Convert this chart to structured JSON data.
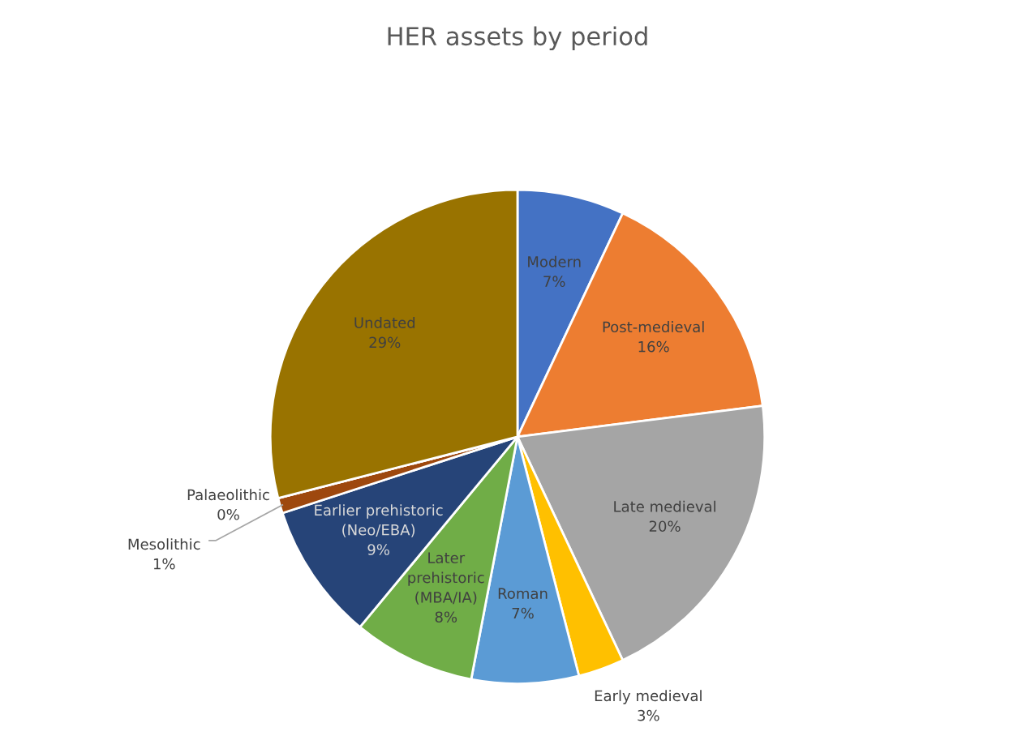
{
  "chart_data": {
    "type": "pie",
    "title": "HER assets by period",
    "categories": [
      "Modern",
      "Post-medieval",
      "Late medieval",
      "Early medieval",
      "Roman",
      "Later\nprehistoric\n(MBA/IA)",
      "Earlier prehistoric\n(Neo/EBA)",
      "Mesolithic",
      "Palaeolithic",
      "Undated"
    ],
    "values": [
      7,
      16,
      20,
      3,
      7,
      8,
      9,
      1,
      0,
      29
    ],
    "value_labels": [
      "7%",
      "16%",
      "20%",
      "3%",
      "7%",
      "8%",
      "9%",
      "1%",
      "0%",
      "29%"
    ],
    "colors": [
      "#4472c4",
      "#ed7d31",
      "#a5a5a5",
      "#ffc000",
      "#5b9bd5",
      "#70ad47",
      "#264478",
      "#9e480e",
      "#636363",
      "#997300"
    ]
  }
}
